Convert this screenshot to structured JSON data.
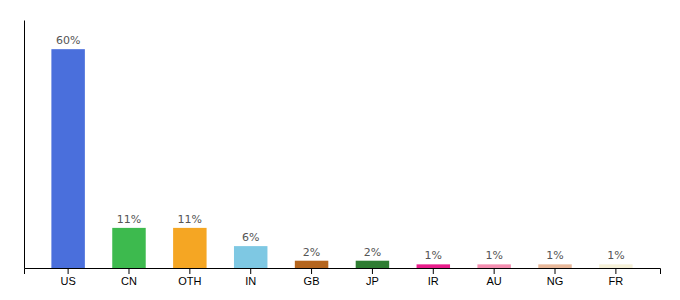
{
  "chart_data": {
    "type": "bar",
    "categories": [
      "US",
      "CN",
      "OTH",
      "IN",
      "GB",
      "JP",
      "IR",
      "AU",
      "NG",
      "FR"
    ],
    "values": [
      60,
      11,
      11,
      6,
      2,
      2,
      1,
      1,
      1,
      1
    ],
    "colors": [
      "#4a6fdc",
      "#3dba4e",
      "#f5a623",
      "#7ec8e3",
      "#b5651d",
      "#2e7d32",
      "#e91e8c",
      "#f48fb1",
      "#e8b89a",
      "#f5f0d8"
    ],
    "value_labels": [
      "60%",
      "11%",
      "11%",
      "6%",
      "2%",
      "2%",
      "1%",
      "1%",
      "1%",
      "1%"
    ],
    "data_labels": true,
    "ylim": [
      0,
      68
    ],
    "tick_labels": "x",
    "grid": false
  }
}
